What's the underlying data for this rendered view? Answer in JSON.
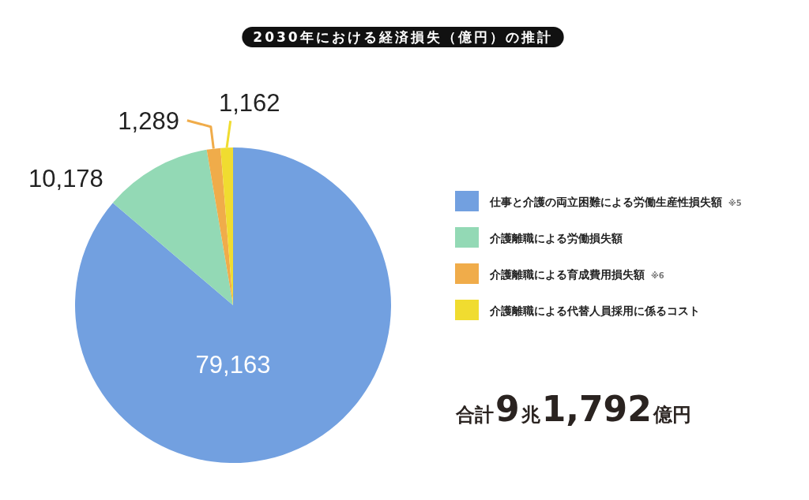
{
  "chart_data": {
    "type": "pie",
    "title": "2030年における経済損失（億円）の推計",
    "categories": [
      "仕事と介護の両立困難による労働生産性損失額 ※5",
      "介護離職による労働損失額",
      "介護離職による育成費用損失額 ※6",
      "介護離職による代替人員採用に係るコスト"
    ],
    "values": [
      79163,
      10178,
      1289,
      1162
    ],
    "value_labels": [
      "79,163",
      "10,178",
      "1,289",
      "1,162"
    ],
    "colors": [
      "#72a0e0",
      "#93d9b5",
      "#f0ac4a",
      "#f0dc30"
    ],
    "legend": "right",
    "annotations": [
      "合計9兆1,792億円"
    ]
  }
}
